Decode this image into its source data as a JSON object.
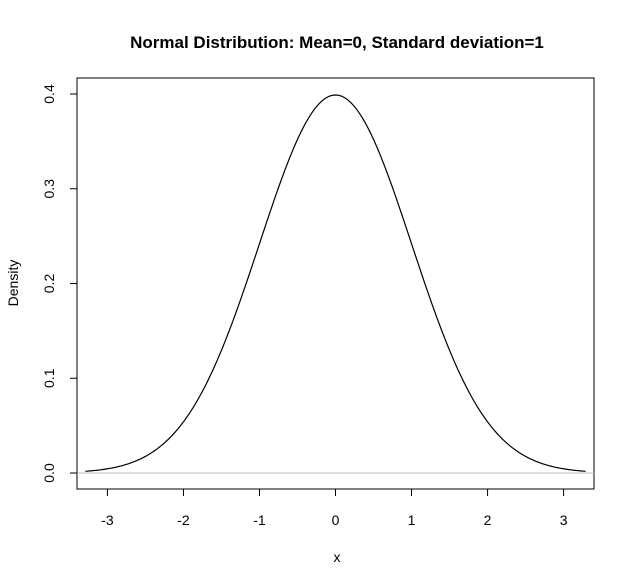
{
  "chart_data": {
    "type": "line",
    "title": "Normal Distribution:  Mean=0, Standard deviation=1",
    "xlabel": "x",
    "ylabel": "Density",
    "mean": 0,
    "sd": 1,
    "xlim": [
      -3.4,
      3.4
    ],
    "ylim": [
      0,
      0.4
    ],
    "x_range": [
      -3.29,
      3.29
    ],
    "x_ticks": [
      -3,
      -2,
      -1,
      0,
      1,
      2,
      3
    ],
    "x_tick_labels": [
      "-3",
      "-2",
      "-1",
      "0",
      "1",
      "2",
      "3"
    ],
    "y_ticks": [
      0,
      0.1,
      0.2,
      0.3,
      0.4
    ],
    "y_tick_labels": [
      "0.0",
      "0.1",
      "0.2",
      "0.3",
      "0.4"
    ],
    "baseline": 0,
    "grid": false,
    "line_color": "#000000",
    "baseline_color": "#bebebe"
  }
}
